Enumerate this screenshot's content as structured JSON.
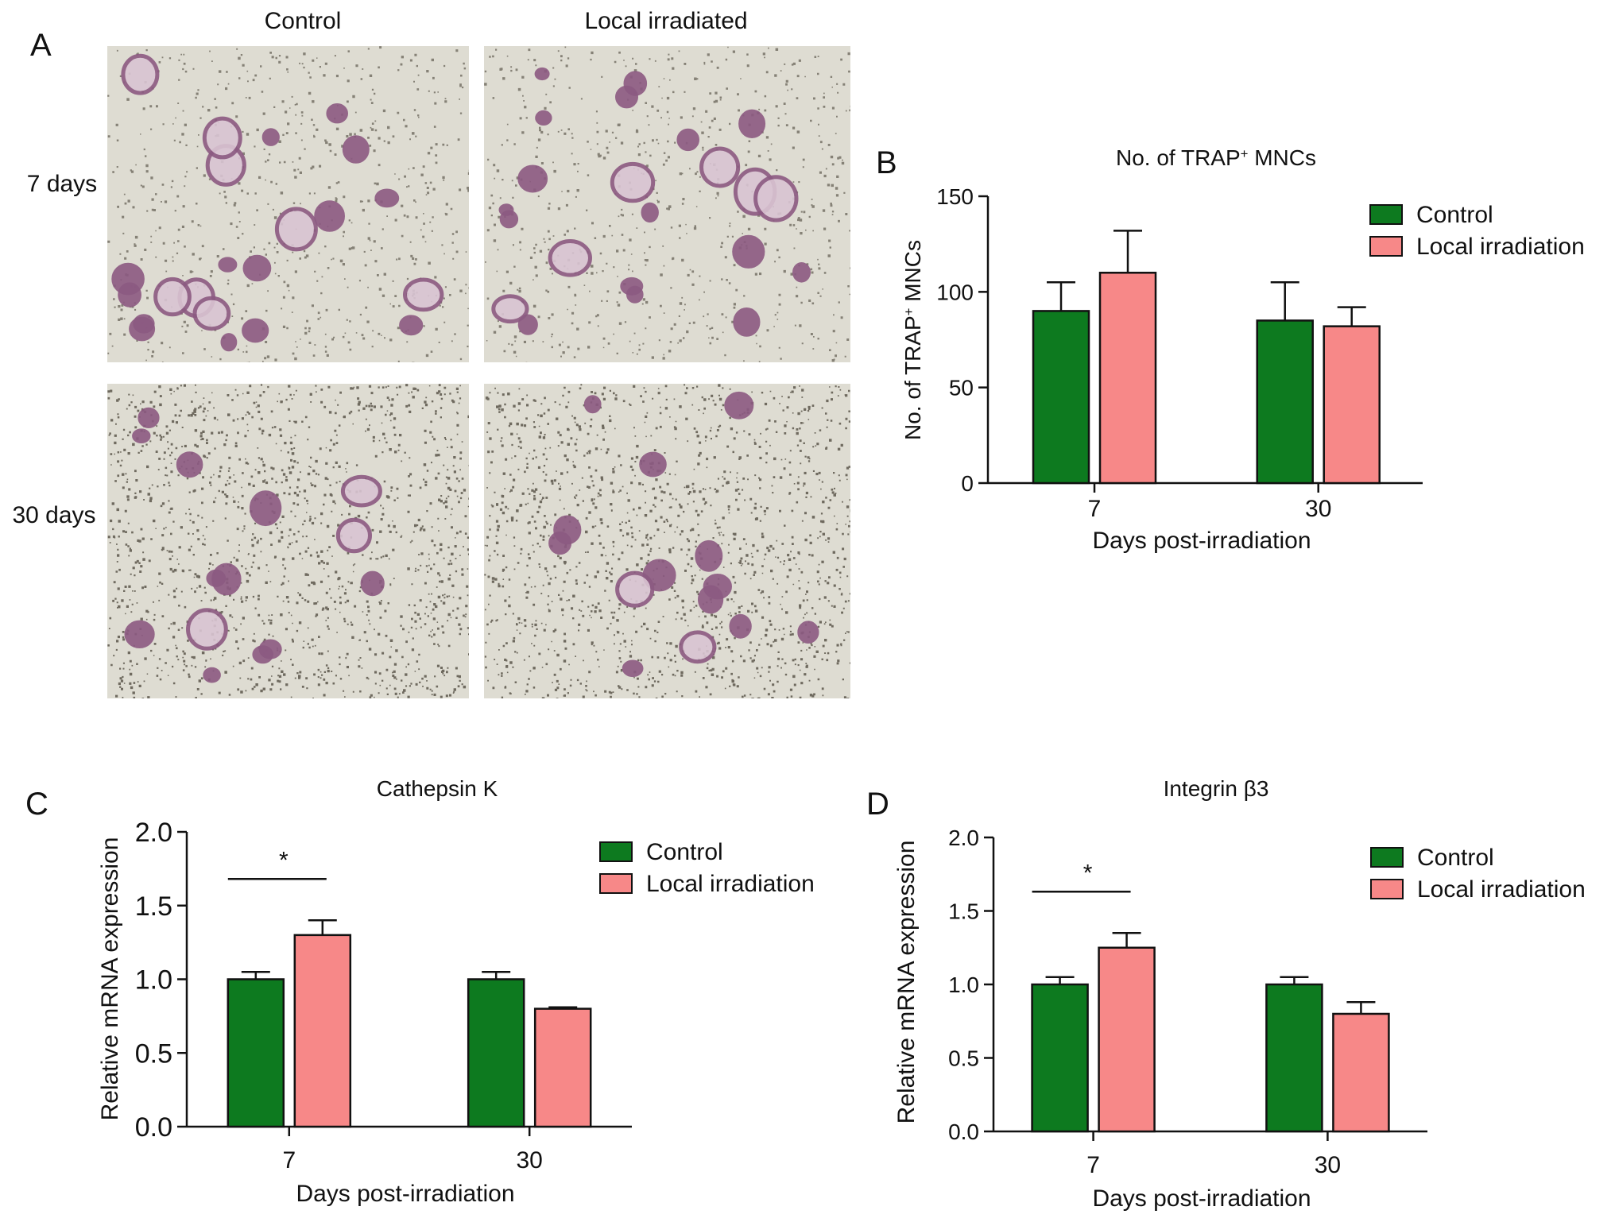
{
  "panel_a": {
    "letter": "A",
    "col_labels": [
      "Control",
      "Local irradiated"
    ],
    "row_labels": [
      "7 days",
      "30 days"
    ],
    "micrographs": [
      {
        "seed": 11,
        "density": "low"
      },
      {
        "seed": 23,
        "density": "low"
      },
      {
        "seed": 37,
        "density": "high"
      },
      {
        "seed": 53,
        "density": "high"
      }
    ],
    "colors": {
      "background": "#dedcd2",
      "cell": "#8c5a82",
      "debris": "#4a4438"
    }
  },
  "colors": {
    "control": "#0d7a1f",
    "irradiation": "#f78888",
    "axis": "#111111"
  },
  "chart_data": [
    {
      "id": "B",
      "letter": "B",
      "type": "bar",
      "title": "No. of TRAP",
      "title_sup": "+",
      "title_suffix": " MNCs",
      "ylabel": "No. of TRAP",
      "ylabel_sup": "+",
      "ylabel_suffix": " MNCs",
      "xlabel": "Days post-irradiation",
      "categories": [
        "7",
        "30"
      ],
      "ylim": [
        0,
        150
      ],
      "yticks": [
        "0",
        "50",
        "100",
        "150"
      ],
      "legend_position": "top-right",
      "series": [
        {
          "name": "Control",
          "values": [
            90,
            85
          ],
          "errors": [
            15,
            20
          ]
        },
        {
          "name": "Local irradiation",
          "values": [
            110,
            82
          ],
          "errors": [
            22,
            10
          ]
        }
      ],
      "annotations": []
    },
    {
      "id": "C",
      "letter": "C",
      "type": "bar",
      "title": "Cathepsin K",
      "ylabel": "Relative mRNA expression",
      "xlabel": "Days post-irradiation",
      "categories": [
        "7",
        "30"
      ],
      "ylim": [
        0,
        2.0
      ],
      "yticks": [
        "0.0",
        "0.5",
        "1.0",
        "1.5",
        "2.0"
      ],
      "legend_position": "top-right",
      "series": [
        {
          "name": "Control",
          "values": [
            1.0,
            1.0
          ],
          "errors": [
            0.05,
            0.05
          ]
        },
        {
          "name": "Local irradiation",
          "values": [
            1.3,
            0.8
          ],
          "errors": [
            0.1,
            0.01
          ]
        }
      ],
      "annotations": [
        {
          "text": "*",
          "category": "7"
        }
      ]
    },
    {
      "id": "D",
      "letter": "D",
      "type": "bar",
      "title": "Integrin β3",
      "ylabel": "Relative mRNA expression",
      "xlabel": "Days post-irradiation",
      "categories": [
        "7",
        "30"
      ],
      "ylim": [
        0,
        2.0
      ],
      "yticks": [
        "0.0",
        "0.5",
        "1.0",
        "1.5",
        "2.0"
      ],
      "legend_position": "top-right",
      "series": [
        {
          "name": "Control",
          "values": [
            1.0,
            1.0
          ],
          "errors": [
            0.05,
            0.05
          ]
        },
        {
          "name": "Local irradiation",
          "values": [
            1.25,
            0.8
          ],
          "errors": [
            0.1,
            0.08
          ]
        }
      ],
      "annotations": [
        {
          "text": "*",
          "category": "7"
        }
      ]
    }
  ]
}
